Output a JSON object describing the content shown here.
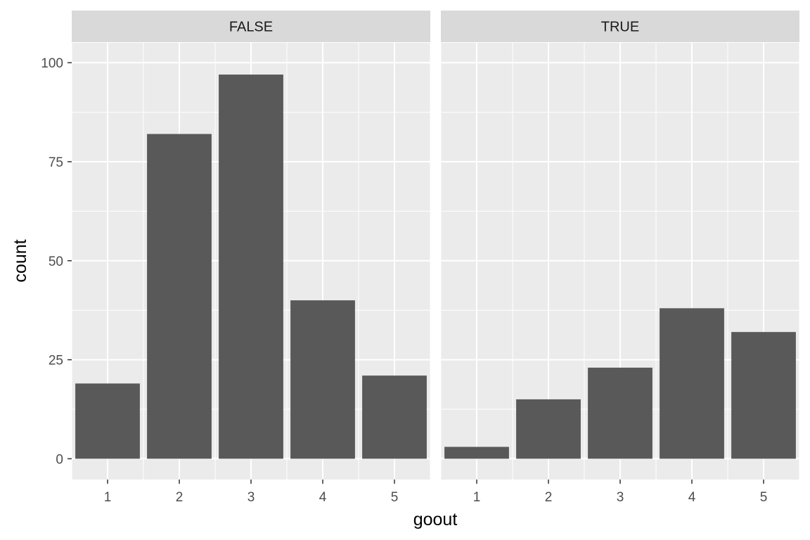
{
  "chart_data": {
    "type": "bar",
    "facet_variable": "",
    "xlabel": "goout",
    "ylabel": "count",
    "categories": [
      "1",
      "2",
      "3",
      "4",
      "5"
    ],
    "ylim": [
      0,
      105
    ],
    "yticks": [
      0,
      25,
      50,
      75,
      100
    ],
    "grid": true,
    "bar_color": "#595959",
    "panel_background": "#ebebeb",
    "strip_background": "#d9d9d9",
    "panels": [
      {
        "strip": "FALSE",
        "values": [
          19,
          82,
          97,
          40,
          21
        ]
      },
      {
        "strip": "TRUE",
        "values": [
          3,
          15,
          23,
          38,
          32
        ]
      }
    ]
  }
}
